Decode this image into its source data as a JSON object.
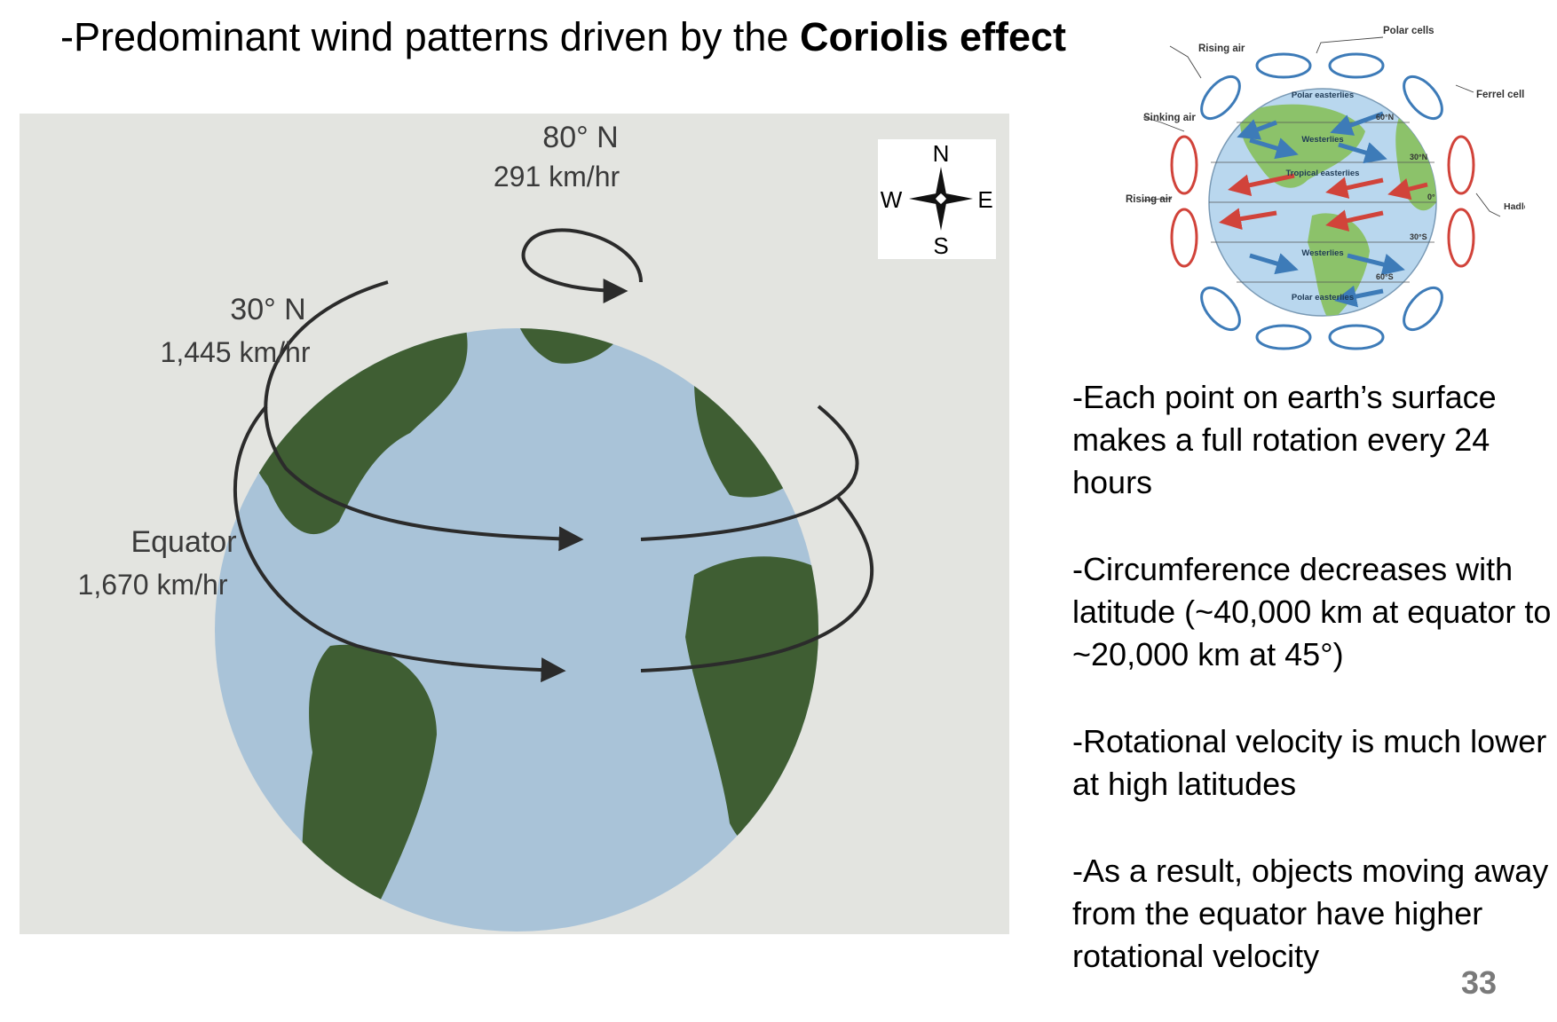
{
  "slide": {
    "title_prefix": "-Predominant wind patterns driven by the ",
    "title_bold": "Coriolis effect",
    "page_number": "33"
  },
  "globe_figure": {
    "label_80_lat": "80° N",
    "label_80_speed": "291 km/hr",
    "label_30_lat": "30° N",
    "label_30_speed": "1,445 km/hr",
    "label_eq_lat": "Equator",
    "label_eq_speed": "1,670 km/hr",
    "compass": {
      "n": "N",
      "s": "S",
      "e": "E",
      "w": "W"
    },
    "colors": {
      "ocean": "#a9c3d8",
      "land": "#3f5e33",
      "paper": "#e3e4e0"
    }
  },
  "cells_figure": {
    "polar_cells": "Polar cells",
    "rising_air_top": "Rising air",
    "sinking_air": "Sinking air",
    "rising_air_mid": "Rising air",
    "ferrel_cell": "Ferrel cell",
    "hadley_cells": "Hadley cells",
    "polar_easterlies_top": "Polar easterlies",
    "westerlies_top": "Westerlies",
    "tropical_easterlies": "Tropical easterlies",
    "westerlies_bottom": "Westerlies",
    "polar_easterlies_bottom": "Polar easterlies",
    "lat_60n": "60°N",
    "lat_30n": "30°N",
    "lat_0": "0°",
    "lat_30s": "30°S",
    "lat_60s": "60°S",
    "colors": {
      "cold_arrow": "#3d7bb8",
      "warm_arrow": "#d1433a",
      "ocean": "#b9d7ee",
      "land": "#8cc26a"
    }
  },
  "bullets": [
    "-Each point on earth’s surface makes a full rotation every 24 hours",
    "-Circumference decreases with latitude (~40,000 km at equator to ~20,000 km at 45°)",
    "-Rotational velocity is much lower at high latitudes",
    "-As a result, objects moving away from the equator have higher rotational velocity"
  ]
}
